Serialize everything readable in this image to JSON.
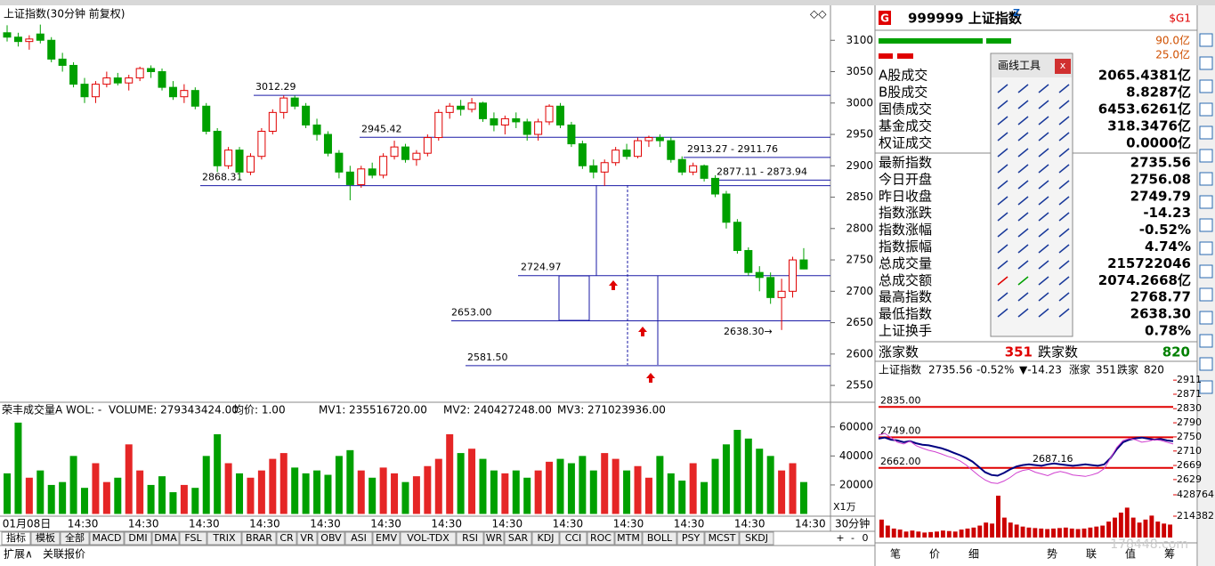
{
  "chart_data": [
    {
      "type": "candlestick",
      "title": "上证指数(30分钟 前复权)",
      "up_color": "#e00000",
      "down_color": "#00a000",
      "ylim": [
        2526,
        3150
      ],
      "yticks": [
        2550,
        2600,
        2650,
        2700,
        2750,
        2800,
        2850,
        2900,
        2950,
        3000,
        3050,
        3100
      ],
      "x_labels": [
        "01月08日",
        "14:30",
        "14:30",
        "14:30",
        "14:30",
        "14:30",
        "14:30",
        "14:30",
        "14:30",
        "14:30",
        "14:30",
        "14:30",
        "14:30",
        "14:30"
      ],
      "ohlc": [
        [
          3112,
          3124,
          3098,
          3105
        ],
        [
          3105,
          3112,
          3090,
          3098
        ],
        [
          3098,
          3108,
          3085,
          3102
        ],
        [
          3110,
          3125,
          3095,
          3100
        ],
        [
          3100,
          3105,
          3065,
          3070
        ],
        [
          3070,
          3080,
          3050,
          3060
        ],
        [
          3060,
          3065,
          3025,
          3030
        ],
        [
          3030,
          3040,
          3000,
          3010
        ],
        [
          3010,
          3035,
          3000,
          3030
        ],
        [
          3030,
          3050,
          3025,
          3040
        ],
        [
          3040,
          3048,
          3028,
          3032
        ],
        [
          3032,
          3045,
          3020,
          3040
        ],
        [
          3040,
          3058,
          3035,
          3055
        ],
        [
          3055,
          3060,
          3040,
          3050
        ],
        [
          3050,
          3055,
          3020,
          3025
        ],
        [
          3025,
          3035,
          3005,
          3010
        ],
        [
          3010,
          3030,
          3000,
          3020
        ],
        [
          3020,
          3025,
          2990,
          2995
        ],
        [
          2995,
          3000,
          2950,
          2955
        ],
        [
          2955,
          2960,
          2890,
          2900
        ],
        [
          2900,
          2930,
          2895,
          2925
        ],
        [
          2925,
          2930,
          2880,
          2890
        ],
        [
          2890,
          2920,
          2885,
          2915
        ],
        [
          2915,
          2960,
          2910,
          2955
        ],
        [
          2955,
          2990,
          2950,
          2985
        ],
        [
          2985,
          3012,
          2975,
          3008
        ],
        [
          3008,
          3012,
          2990,
          2995
        ],
        [
          2995,
          3000,
          2960,
          2965
        ],
        [
          2965,
          2975,
          2940,
          2950
        ],
        [
          2950,
          2955,
          2915,
          2920
        ],
        [
          2920,
          2925,
          2880,
          2890
        ],
        [
          2890,
          2900,
          2845,
          2870
        ],
        [
          2870,
          2900,
          2865,
          2895
        ],
        [
          2895,
          2905,
          2880,
          2885
        ],
        [
          2885,
          2920,
          2880,
          2915
        ],
        [
          2915,
          2940,
          2910,
          2930
        ],
        [
          2930,
          2935,
          2905,
          2910
        ],
        [
          2910,
          2925,
          2900,
          2920
        ],
        [
          2920,
          2950,
          2915,
          2945
        ],
        [
          2945,
          2990,
          2940,
          2985
        ],
        [
          2985,
          3000,
          2975,
          2995
        ],
        [
          2995,
          3005,
          2980,
          2990
        ],
        [
          2990,
          3008,
          2985,
          3000
        ],
        [
          3000,
          3002,
          2970,
          2975
        ],
        [
          2975,
          2985,
          2955,
          2965
        ],
        [
          2965,
          2980,
          2950,
          2975
        ],
        [
          2975,
          2985,
          2960,
          2970
        ],
        [
          2970,
          2975,
          2940,
          2950
        ],
        [
          2950,
          2975,
          2940,
          2970
        ],
        [
          2970,
          2998,
          2965,
          2995
        ],
        [
          2995,
          3000,
          2960,
          2965
        ],
        [
          2965,
          2970,
          2930,
          2935
        ],
        [
          2935,
          2940,
          2895,
          2900
        ],
        [
          2900,
          2910,
          2880,
          2890
        ],
        [
          2890,
          2910,
          2868,
          2905
        ],
        [
          2905,
          2930,
          2900,
          2925
        ],
        [
          2925,
          2935,
          2910,
          2915
        ],
        [
          2915,
          2945,
          2912,
          2940
        ],
        [
          2940,
          2948,
          2930,
          2945
        ],
        [
          2945,
          2950,
          2930,
          2940
        ],
        [
          2940,
          2945,
          2905,
          2910
        ],
        [
          2910,
          2915,
          2885,
          2890
        ],
        [
          2890,
          2905,
          2885,
          2900
        ],
        [
          2900,
          2902,
          2875,
          2880
        ],
        [
          2880,
          2885,
          2850,
          2855
        ],
        [
          2855,
          2860,
          2800,
          2810
        ],
        [
          2810,
          2815,
          2760,
          2765
        ],
        [
          2765,
          2770,
          2725,
          2730
        ],
        [
          2730,
          2740,
          2700,
          2722
        ],
        [
          2722,
          2730,
          2680,
          2690
        ],
        [
          2690,
          2720,
          2638.3,
          2700
        ],
        [
          2700,
          2755,
          2690,
          2750
        ],
        [
          2750,
          2768.77,
          2735,
          2735.56
        ]
      ],
      "annotations": [
        3012.29,
        2945.42,
        2868.31,
        {
          "value": 2913.27,
          "label": "2913.27 - 2911.76"
        },
        {
          "value": 2877.11,
          "label": "2877.11 - 2873.94"
        },
        2724.97,
        {
          "value": 2653,
          "label": "2653.00"
        },
        {
          "value": 2581.5,
          "label": "2581.50"
        },
        {
          "value": 2638.3,
          "label": "2638.30→"
        }
      ],
      "annotation_color": "#1a1aa6"
    },
    {
      "type": "bar",
      "title": "荣丰成交量A WOL: -",
      "unit": "X1万",
      "header": [
        {
          "text": "VOLUME: 279343424.00",
          "color": "#d000d0"
        },
        {
          "text": "均价: 1.00",
          "color": "#d000d0"
        },
        {
          "text": "MV1: 235516720.00",
          "color": "#008000"
        },
        {
          "text": "MV2: 240427248.00",
          "color": "#c000c0"
        },
        {
          "text": "MV3: 271023936.00",
          "color": "#0000c0"
        }
      ],
      "ylim": [
        0,
        66000
      ],
      "yticks": [
        20000,
        40000,
        60000
      ],
      "values": [
        28000,
        63000,
        25000,
        30000,
        20000,
        22000,
        40000,
        18000,
        35000,
        22000,
        25000,
        48000,
        30000,
        20000,
        26000,
        15000,
        20000,
        18000,
        40000,
        55000,
        35000,
        28000,
        25000,
        30000,
        38000,
        42000,
        32000,
        28000,
        30000,
        27000,
        40000,
        44000,
        30000,
        25000,
        32000,
        28000,
        22000,
        26000,
        33000,
        38000,
        55000,
        42000,
        45000,
        38000,
        30000,
        28000,
        30000,
        25000,
        30000,
        36000,
        38000,
        35000,
        40000,
        30000,
        42000,
        38000,
        30000,
        33000,
        25000,
        40000,
        28000,
        23000,
        35000,
        22000,
        38000,
        48000,
        58000,
        52000,
        45000,
        40000,
        30000,
        35000,
        22000
      ]
    },
    {
      "type": "line",
      "ylim": [
        2606,
        2929
      ],
      "yticks": [
        2911,
        2871,
        2830,
        2790,
        2750,
        2710,
        2669,
        2629
      ],
      "series": [
        {
          "color": "#000080",
          "values": [
            2745,
            2748,
            2742,
            2740,
            2735,
            2738,
            2732,
            2728,
            2726,
            2722,
            2718,
            2712,
            2705,
            2698,
            2690,
            2680,
            2665,
            2650,
            2642,
            2640,
            2648,
            2658,
            2666,
            2670,
            2672,
            2670,
            2668,
            2672,
            2675,
            2672,
            2670,
            2668,
            2670,
            2672,
            2670,
            2668,
            2672,
            2690,
            2715,
            2735,
            2742,
            2746,
            2748,
            2745,
            2742,
            2744,
            2740,
            2738
          ]
        },
        {
          "color": "#d040d0",
          "values": [
            2755,
            2760,
            2748,
            2735,
            2730,
            2738,
            2725,
            2718,
            2712,
            2708,
            2702,
            2695,
            2690,
            2682,
            2670,
            2655,
            2640,
            2628,
            2620,
            2618,
            2625,
            2635,
            2648,
            2655,
            2658,
            2650,
            2645,
            2640,
            2648,
            2652,
            2648,
            2642,
            2640,
            2638,
            2642,
            2648,
            2660,
            2690,
            2720,
            2740,
            2745,
            2742,
            2735,
            2738,
            2742,
            2740,
            2735,
            2730
          ]
        }
      ],
      "levels": [
        {
          "value": 2835,
          "label": "2835.00"
        },
        {
          "value": 2749,
          "label": "2749.00"
        },
        {
          "value": 2662,
          "label": "2662.00"
        }
      ],
      "level_color": "#e00000",
      "annotation": 2687.16
    },
    {
      "type": "bar",
      "ylim": [
        0,
        428764
      ],
      "yticks": [
        428764,
        214382
      ],
      "color": "#cc0000",
      "values": [
        180000,
        120000,
        90000,
        80000,
        60000,
        70000,
        60000,
        50000,
        55000,
        60000,
        70000,
        65000,
        60000,
        80000,
        90000,
        100000,
        120000,
        150000,
        140000,
        420000,
        200000,
        150000,
        130000,
        110000,
        100000,
        95000,
        90000,
        85000,
        90000,
        95000,
        100000,
        90000,
        85000,
        90000,
        100000,
        110000,
        120000,
        160000,
        200000,
        250000,
        300000,
        200000,
        150000,
        180000,
        220000,
        160000,
        140000,
        130000
      ]
    }
  ],
  "main_panel": {
    "period": "30分钟",
    "zoom": [
      "+",
      "-",
      "0"
    ],
    "tabs": [
      "指标",
      "模板",
      "全部",
      "MACD",
      "DMI",
      "DMA",
      "FSL",
      "TRIX",
      "BRAR",
      "CR",
      "VR",
      "OBV",
      "ASI",
      "EMV",
      "VOL-TDX",
      "RSI",
      "WR",
      "SAR",
      "KDJ",
      "CCI",
      "ROC",
      "MTM",
      "BOLL",
      "PSY",
      "MCST",
      "SKDJ"
    ],
    "footer": [
      "扩展∧",
      "关联报价"
    ]
  },
  "drawing_tools": {
    "title": "画线工具",
    "close": "x"
  },
  "quote_panel": {
    "badge": "G",
    "code_name": "999999 上证指数",
    "mark": "Z",
    "flag": "$G1",
    "bar_values": [
      "90.0亿",
      "25.0亿"
    ],
    "rows": [
      {
        "label": "A股成交",
        "value": "2065.4381亿",
        "color": "#d05000"
      },
      {
        "label": "B股成交",
        "value": "8.8287亿",
        "color": "#d05000"
      },
      {
        "label": "国债成交",
        "value": "6453.6261亿",
        "color": "#d05000"
      },
      {
        "label": "基金成交",
        "value": "318.3476亿",
        "color": "#d05000"
      },
      {
        "label": "权证成交",
        "value": "0.0000亿",
        "color": "#d05000"
      },
      {
        "label": "最新指数",
        "value": "2735.56",
        "color": "#008000"
      },
      {
        "label": "今日开盘",
        "value": "2756.08",
        "color": "#e00000"
      },
      {
        "label": "昨日收盘",
        "value": "2749.79",
        "color": "#000000"
      },
      {
        "label": "指数涨跌",
        "value": "-14.23",
        "color": "#008000"
      },
      {
        "label": "指数涨幅",
        "value": "-0.52%",
        "color": "#008000"
      },
      {
        "label": "指数振幅",
        "value": "4.74%",
        "color": "#000000"
      },
      {
        "label": "总成交量",
        "value": "215722046",
        "color": "#d05000"
      },
      {
        "label": "总成交额",
        "value": "2074.2668亿",
        "color": "#d05000"
      },
      {
        "label": "最高指数",
        "value": "2768.77",
        "color": "#e00000"
      },
      {
        "label": "最低指数",
        "value": "2638.30",
        "color": "#008000"
      },
      {
        "label": "上证换手",
        "value": "0.78%",
        "color": "#000000"
      }
    ],
    "breadth": [
      "涨家数",
      "351",
      "跌家数",
      "820"
    ],
    "mini_header": [
      {
        "text": "上证指数",
        "color": "#000000"
      },
      {
        "text": "2735.56",
        "color": "#008000"
      },
      {
        "text": "-0.52%",
        "color": "#008000"
      },
      {
        "text": "▼-14.23",
        "color": "#008000"
      },
      {
        "text": "涨家",
        "color": "#000000"
      },
      {
        "text": "351",
        "color": "#e00000"
      },
      {
        "text": "跌家",
        "color": "#000000"
      },
      {
        "text": "820",
        "color": "#008000"
      }
    ],
    "mini_tabs": [
      "笔",
      "价",
      "细",
      "势",
      "联",
      "值",
      "筹"
    ],
    "active_tab": "势"
  },
  "watermark": "178448.com"
}
